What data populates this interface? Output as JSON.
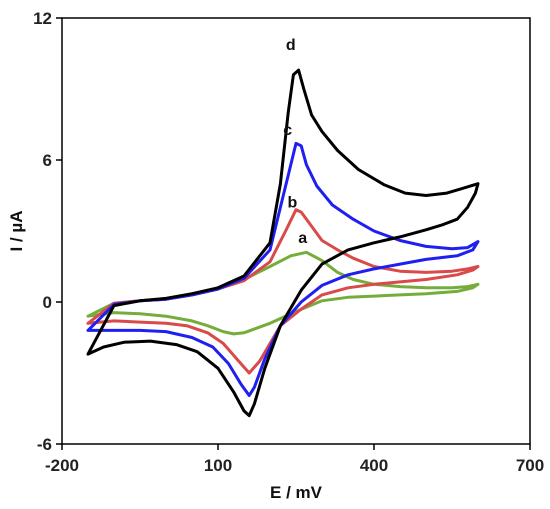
{
  "chart_data": {
    "type": "line",
    "xlabel": "E / mV",
    "ylabel": "I / µA",
    "xlim": [
      -200,
      700
    ],
    "ylim": [
      -6,
      12
    ],
    "xticks": [
      -200,
      100,
      400,
      700
    ],
    "yticks": [
      -6,
      0,
      6,
      12
    ],
    "grid": false,
    "series": [
      {
        "name": "a",
        "color": "#74ad3a",
        "label_at": [
          263,
          2.5
        ],
        "points": [
          [
            -150,
            -0.6
          ],
          [
            -100,
            -0.05
          ],
          [
            -50,
            0.05
          ],
          [
            0,
            0.12
          ],
          [
            50,
            0.3
          ],
          [
            100,
            0.55
          ],
          [
            150,
            0.95
          ],
          [
            200,
            1.5
          ],
          [
            240,
            1.95
          ],
          [
            270,
            2.1
          ],
          [
            300,
            1.75
          ],
          [
            330,
            1.25
          ],
          [
            360,
            0.95
          ],
          [
            400,
            0.75
          ],
          [
            450,
            0.65
          ],
          [
            500,
            0.6
          ],
          [
            550,
            0.6
          ],
          [
            580,
            0.65
          ],
          [
            600,
            0.75
          ],
          [
            590,
            0.6
          ],
          [
            560,
            0.45
          ],
          [
            500,
            0.35
          ],
          [
            450,
            0.3
          ],
          [
            400,
            0.25
          ],
          [
            350,
            0.2
          ],
          [
            300,
            0.05
          ],
          [
            250,
            -0.4
          ],
          [
            200,
            -0.9
          ],
          [
            150,
            -1.3
          ],
          [
            130,
            -1.35
          ],
          [
            110,
            -1.25
          ],
          [
            80,
            -1.0
          ],
          [
            50,
            -0.8
          ],
          [
            0,
            -0.6
          ],
          [
            -50,
            -0.5
          ],
          [
            -100,
            -0.45
          ],
          [
            -150,
            -0.6
          ]
        ]
      },
      {
        "name": "b",
        "color": "#d94a4a",
        "label_at": [
          243,
          4.0
        ],
        "points": [
          [
            -150,
            -0.9
          ],
          [
            -100,
            -0.05
          ],
          [
            -50,
            0.05
          ],
          [
            0,
            0.12
          ],
          [
            50,
            0.3
          ],
          [
            100,
            0.55
          ],
          [
            150,
            0.9
          ],
          [
            200,
            1.7
          ],
          [
            230,
            3.0
          ],
          [
            250,
            3.9
          ],
          [
            260,
            3.8
          ],
          [
            280,
            3.2
          ],
          [
            300,
            2.6
          ],
          [
            330,
            2.2
          ],
          [
            360,
            1.85
          ],
          [
            400,
            1.5
          ],
          [
            450,
            1.3
          ],
          [
            500,
            1.25
          ],
          [
            550,
            1.3
          ],
          [
            580,
            1.4
          ],
          [
            600,
            1.5
          ],
          [
            590,
            1.35
          ],
          [
            560,
            1.15
          ],
          [
            500,
            0.95
          ],
          [
            450,
            0.85
          ],
          [
            400,
            0.75
          ],
          [
            350,
            0.6
          ],
          [
            300,
            0.3
          ],
          [
            260,
            -0.3
          ],
          [
            220,
            -1.0
          ],
          [
            180,
            -2.5
          ],
          [
            160,
            -3.0
          ],
          [
            140,
            -2.5
          ],
          [
            110,
            -1.75
          ],
          [
            80,
            -1.3
          ],
          [
            40,
            -1.0
          ],
          [
            0,
            -0.9
          ],
          [
            -50,
            -0.85
          ],
          [
            -100,
            -0.8
          ],
          [
            -150,
            -0.9
          ]
        ]
      },
      {
        "name": "c",
        "color": "#1f1ff0",
        "label_at": [
          234,
          7.05
        ],
        "points": [
          [
            -150,
            -1.2
          ],
          [
            -100,
            -0.1
          ],
          [
            -50,
            0.05
          ],
          [
            0,
            0.12
          ],
          [
            50,
            0.3
          ],
          [
            100,
            0.55
          ],
          [
            150,
            1.0
          ],
          [
            200,
            2.2
          ],
          [
            220,
            4.0
          ],
          [
            240,
            5.8
          ],
          [
            250,
            6.7
          ],
          [
            260,
            6.6
          ],
          [
            270,
            5.8
          ],
          [
            290,
            4.9
          ],
          [
            320,
            4.1
          ],
          [
            360,
            3.5
          ],
          [
            400,
            3.0
          ],
          [
            450,
            2.6
          ],
          [
            500,
            2.35
          ],
          [
            550,
            2.25
          ],
          [
            580,
            2.3
          ],
          [
            600,
            2.55
          ],
          [
            590,
            2.2
          ],
          [
            560,
            1.95
          ],
          [
            500,
            1.8
          ],
          [
            450,
            1.6
          ],
          [
            400,
            1.4
          ],
          [
            350,
            1.15
          ],
          [
            300,
            0.7
          ],
          [
            260,
            0.0
          ],
          [
            220,
            -1.0
          ],
          [
            190,
            -2.4
          ],
          [
            170,
            -3.6
          ],
          [
            160,
            -3.95
          ],
          [
            145,
            -3.5
          ],
          [
            120,
            -2.6
          ],
          [
            90,
            -1.9
          ],
          [
            50,
            -1.5
          ],
          [
            0,
            -1.25
          ],
          [
            -50,
            -1.2
          ],
          [
            -100,
            -1.2
          ],
          [
            -150,
            -1.2
          ]
        ]
      },
      {
        "name": "d",
        "color": "#000000",
        "label_at": [
          240,
          10.65
        ],
        "points": [
          [
            -150,
            -2.2
          ],
          [
            -100,
            -0.15
          ],
          [
            -50,
            0.05
          ],
          [
            0,
            0.15
          ],
          [
            50,
            0.35
          ],
          [
            100,
            0.6
          ],
          [
            150,
            1.1
          ],
          [
            200,
            2.5
          ],
          [
            220,
            5.0
          ],
          [
            235,
            8.0
          ],
          [
            245,
            9.6
          ],
          [
            255,
            9.8
          ],
          [
            265,
            9.0
          ],
          [
            280,
            7.9
          ],
          [
            300,
            7.2
          ],
          [
            330,
            6.4
          ],
          [
            370,
            5.6
          ],
          [
            420,
            4.95
          ],
          [
            460,
            4.6
          ],
          [
            500,
            4.5
          ],
          [
            540,
            4.6
          ],
          [
            570,
            4.8
          ],
          [
            600,
            5.0
          ],
          [
            595,
            4.6
          ],
          [
            580,
            4.0
          ],
          [
            560,
            3.5
          ],
          [
            530,
            3.25
          ],
          [
            500,
            3.05
          ],
          [
            450,
            2.75
          ],
          [
            400,
            2.5
          ],
          [
            350,
            2.2
          ],
          [
            300,
            1.6
          ],
          [
            260,
            0.5
          ],
          [
            220,
            -1.0
          ],
          [
            190,
            -2.8
          ],
          [
            170,
            -4.3
          ],
          [
            160,
            -4.8
          ],
          [
            150,
            -4.6
          ],
          [
            130,
            -3.8
          ],
          [
            100,
            -2.8
          ],
          [
            60,
            -2.1
          ],
          [
            20,
            -1.8
          ],
          [
            -30,
            -1.65
          ],
          [
            -80,
            -1.7
          ],
          [
            -120,
            -1.9
          ],
          [
            -150,
            -2.2
          ]
        ]
      }
    ]
  }
}
